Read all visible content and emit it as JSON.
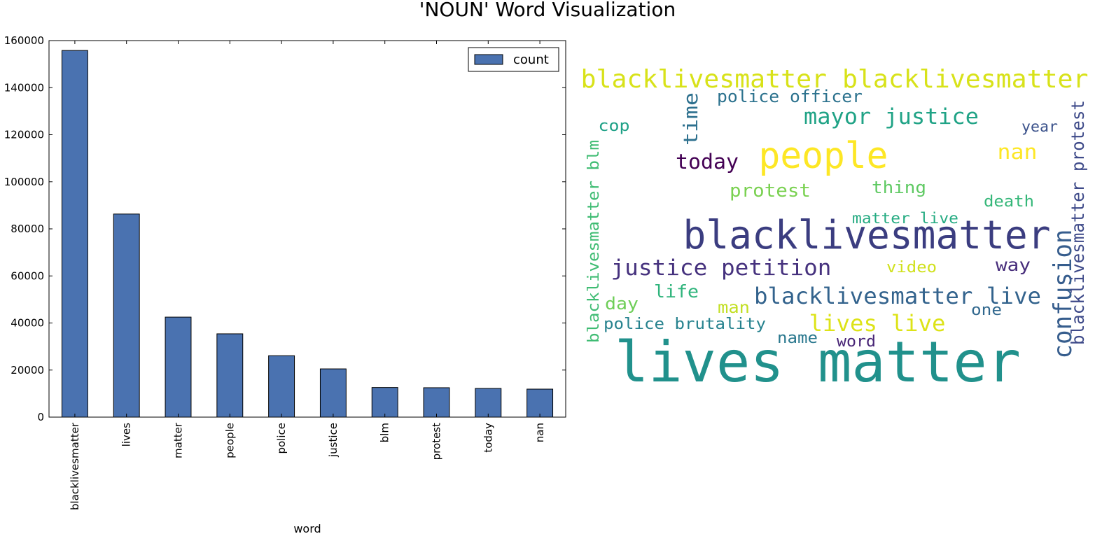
{
  "title": "'NOUN' Word Visualization",
  "chart_data": [
    {
      "type": "bar",
      "categories": [
        "blacklivesmatter",
        "lives",
        "matter",
        "people",
        "police",
        "justice",
        "blm",
        "protest",
        "today",
        "nan"
      ],
      "series": [
        {
          "name": "count",
          "values": [
            155800,
            86300,
            42500,
            35400,
            26100,
            20500,
            12600,
            12500,
            12200,
            11900
          ],
          "color": "#4a72b0"
        }
      ],
      "xlabel": "word",
      "ylabel": "",
      "ylim": [
        0,
        160000
      ],
      "yticks": [
        0,
        20000,
        40000,
        60000,
        80000,
        100000,
        120000,
        140000,
        160000
      ],
      "grid": false,
      "legend": "top-right"
    },
    {
      "type": "wordcloud",
      "words": [
        {
          "text": "lives matter",
          "color": "#21918c"
        },
        {
          "text": "blacklivesmatter",
          "color": "#3b3d80"
        },
        {
          "text": "people",
          "color": "#fde725"
        },
        {
          "text": "blacklivesmatter blacklivesmatter",
          "color": "#d8e219"
        },
        {
          "text": "mayor justice",
          "color": "#20a386"
        },
        {
          "text": "justice petition",
          "color": "#46327e"
        },
        {
          "text": "blacklivesmatter live",
          "color": "#33638d"
        },
        {
          "text": "confusion",
          "color": "#365d8d"
        },
        {
          "text": "lives live",
          "color": "#dde318"
        },
        {
          "text": "police officer",
          "color": "#2c728e"
        },
        {
          "text": "time",
          "color": "#2d708e"
        },
        {
          "text": "today",
          "color": "#440154"
        },
        {
          "text": "protest",
          "color": "#7ad151"
        },
        {
          "text": "thing",
          "color": "#5ec962"
        },
        {
          "text": "nan",
          "color": "#fde725"
        },
        {
          "text": "blacklivesmatter protest",
          "color": "#3e4a89"
        },
        {
          "text": "blacklivesmatter blm",
          "color": "#3fbc73"
        },
        {
          "text": "cop",
          "color": "#1fa187"
        },
        {
          "text": "year",
          "color": "#3b528b"
        },
        {
          "text": "death",
          "color": "#35b779"
        },
        {
          "text": "matter live",
          "color": "#25ab82"
        },
        {
          "text": "video",
          "color": "#d0e11c"
        },
        {
          "text": "way",
          "color": "#472d7b"
        },
        {
          "text": "life",
          "color": "#2fb47c"
        },
        {
          "text": "day",
          "color": "#6ece58"
        },
        {
          "text": "man",
          "color": "#c2df23"
        },
        {
          "text": "one",
          "color": "#31688e"
        },
        {
          "text": "police brutality",
          "color": "#26828e"
        },
        {
          "text": "name",
          "color": "#2a788e"
        },
        {
          "text": "word",
          "color": "#482576"
        }
      ]
    }
  ]
}
